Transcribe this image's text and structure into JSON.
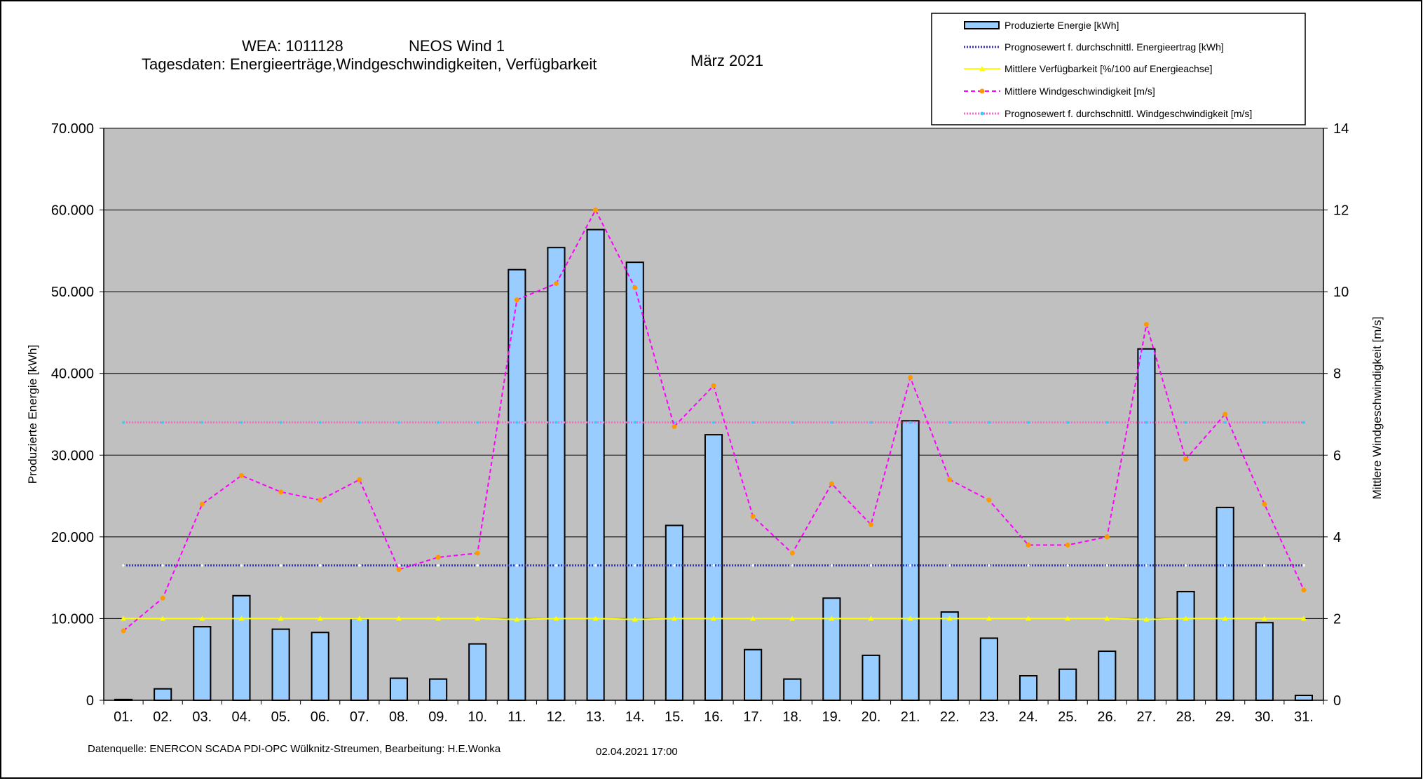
{
  "header": {
    "wea_label": "WEA: 1011128",
    "site_name": "NEOS Wind 1",
    "subtitle": "Tagesdaten:  Energieerträge,Windgeschwindigkeiten,  Verfügbarkeit",
    "month": "März 2021"
  },
  "footer": {
    "source": "Datenquelle:  ENERCON  SCADA PDI-OPC Wülknitz-Streumen,    Bearbeitung:  H.E.Wonka",
    "timestamp": "02.04.2021 17:00"
  },
  "legend": {
    "energy": "Produzierte Energie [kWh]",
    "forecast_energy": "Prognosewert f. durchschnittl. Energieertrag  [kWh]",
    "availability": "Mittlere Verfügbarkeit [%/100 auf Energieachse]",
    "wind": "Mittlere Windgeschwindigkeit [m/s]",
    "forecast_wind": "Prognosewert f. durchschnittl. Windgeschwindigkeit [m/s]"
  },
  "colors": {
    "plot_bg": "#c0c0c0",
    "bar_fill": "#99ccff",
    "forecast_energy": "#3333cc",
    "availability": "#ffff00",
    "wind": "#ff00ff",
    "wind_marker": "#ff9900",
    "forecast_wind": "#ff66cc",
    "forecast_wind_marker": "#33ccff"
  },
  "chart_data": {
    "type": "bar",
    "categories": [
      "01.",
      "02.",
      "03.",
      "04.",
      "05.",
      "06.",
      "07.",
      "08.",
      "09.",
      "10.",
      "11.",
      "12.",
      "13.",
      "14.",
      "15.",
      "16.",
      "17.",
      "18.",
      "19.",
      "20.",
      "21.",
      "22.",
      "23.",
      "24.",
      "25.",
      "26.",
      "27.",
      "28.",
      "29.",
      "30.",
      "31."
    ],
    "ylabel": "Produzierte Energie [kWh]",
    "y2label": "Mittlere Windgeschwindigkeit [m/s]",
    "ylim": [
      0,
      70000
    ],
    "y2lim": [
      0,
      14
    ],
    "yticks": [
      "0",
      "10.000",
      "20.000",
      "30.000",
      "40.000",
      "50.000",
      "60.000",
      "70.000"
    ],
    "y2ticks": [
      "0",
      "2",
      "4",
      "6",
      "8",
      "10",
      "12",
      "14"
    ],
    "grid": true,
    "legend_position": "top-right",
    "series": [
      {
        "name": "Produzierte Energie [kWh]",
        "type": "bar",
        "axis": "left",
        "values": [
          100,
          1400,
          9000,
          12800,
          8700,
          8300,
          10000,
          2700,
          2600,
          6900,
          52700,
          55400,
          57600,
          53600,
          21400,
          32500,
          6200,
          2600,
          12500,
          5500,
          34200,
          10800,
          7600,
          3000,
          3800,
          6000,
          43000,
          13300,
          23600,
          9500,
          600
        ]
      },
      {
        "name": "Prognosewert f. durchschnittl. Energieertrag  [kWh]",
        "type": "line",
        "axis": "left",
        "values": [
          16500,
          16500,
          16500,
          16500,
          16500,
          16500,
          16500,
          16500,
          16500,
          16500,
          16500,
          16500,
          16500,
          16500,
          16500,
          16500,
          16500,
          16500,
          16500,
          16500,
          16500,
          16500,
          16500,
          16500,
          16500,
          16500,
          16500,
          16500,
          16500,
          16500,
          16500
        ]
      },
      {
        "name": "Mittlere Verfügbarkeit [%/100 auf Energieachse]",
        "type": "line",
        "axis": "left",
        "values": [
          10000,
          10000,
          10000,
          10000,
          10000,
          10000,
          10000,
          10000,
          10000,
          10000,
          9900,
          10000,
          10000,
          9900,
          10000,
          10000,
          10000,
          10000,
          10000,
          10000,
          10000,
          10000,
          10000,
          10000,
          10000,
          10000,
          9900,
          10000,
          10000,
          10000,
          10000
        ]
      },
      {
        "name": "Mittlere Windgeschwindigkeit [m/s]",
        "type": "line",
        "axis": "right",
        "values": [
          1.7,
          2.5,
          4.8,
          5.5,
          5.1,
          4.9,
          5.4,
          3.2,
          3.5,
          3.6,
          9.8,
          10.2,
          12.0,
          10.1,
          6.7,
          7.7,
          4.5,
          3.6,
          5.3,
          4.3,
          7.9,
          5.4,
          4.9,
          3.8,
          3.8,
          4.0,
          9.2,
          5.9,
          7.0,
          4.8,
          2.7
        ]
      },
      {
        "name": "Prognosewert f. durchschnittl. Windgeschwindigkeit [m/s]",
        "type": "line",
        "axis": "right",
        "values": [
          6.8,
          6.8,
          6.8,
          6.8,
          6.8,
          6.8,
          6.8,
          6.8,
          6.8,
          6.8,
          6.8,
          6.8,
          6.8,
          6.8,
          6.8,
          6.8,
          6.8,
          6.8,
          6.8,
          6.8,
          6.8,
          6.8,
          6.8,
          6.8,
          6.8,
          6.8,
          6.8,
          6.8,
          6.8,
          6.8,
          6.8
        ]
      }
    ]
  }
}
